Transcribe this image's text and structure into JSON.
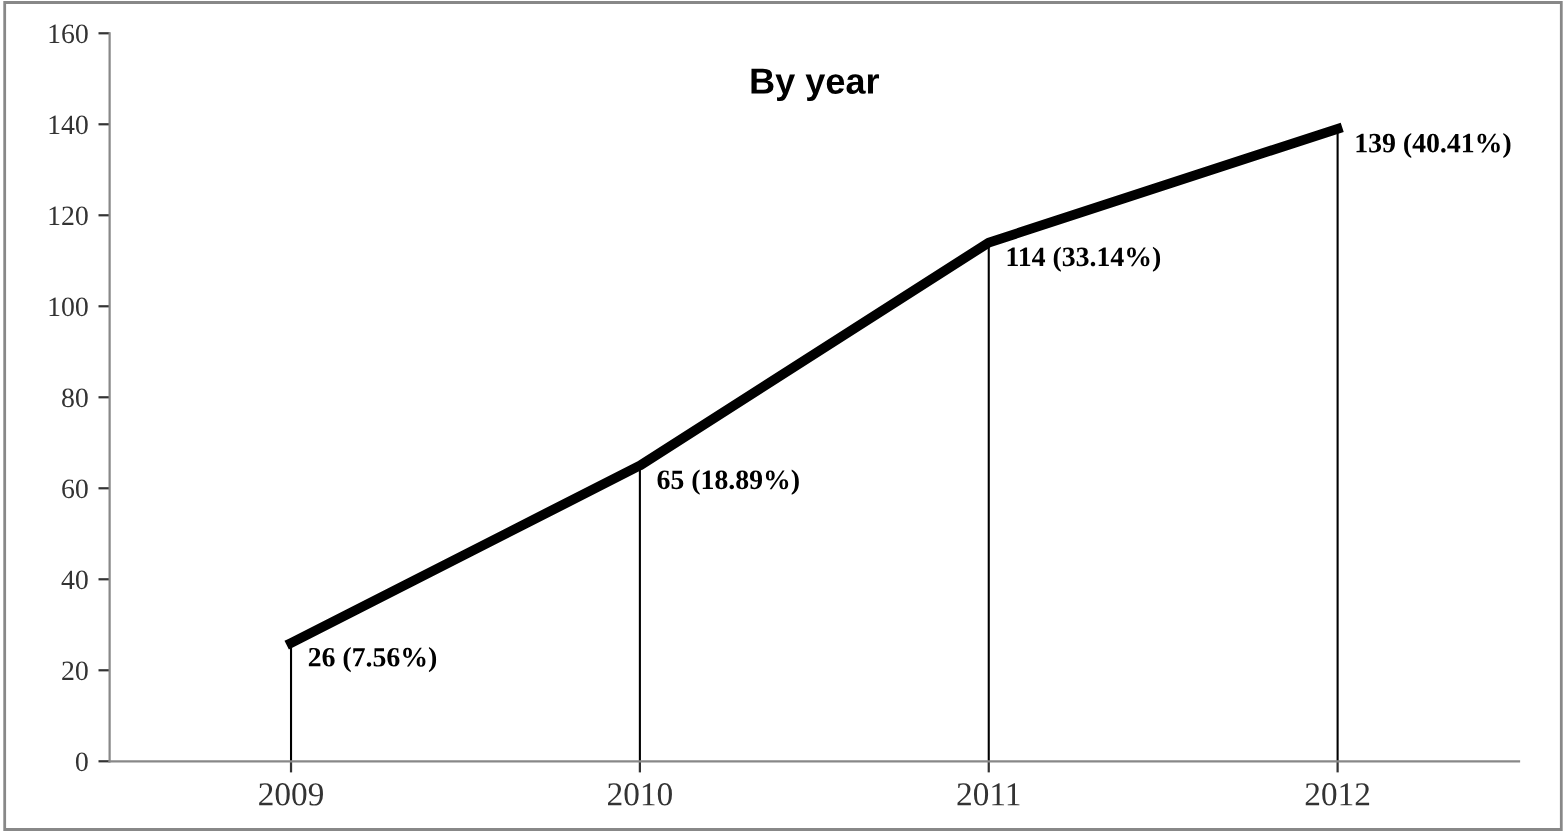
{
  "chart_data": {
    "type": "line",
    "title": "By year",
    "categories": [
      "2009",
      "2010",
      "2011",
      "2012"
    ],
    "series": [
      {
        "type": "bar",
        "color": "#000000",
        "values": [
          26,
          65,
          114,
          139
        ]
      },
      {
        "color": "#000000",
        "values": [
          26,
          65,
          114,
          139
        ],
        "value_labels": [
          "26 (7.56%)",
          "65 (18.89%)",
          "114 (33.14%)",
          "139 (40.41%)"
        ]
      }
    ],
    "ylim": [
      0,
      160
    ],
    "yticks": [
      0,
      20,
      40,
      60,
      80,
      100,
      120,
      140,
      160
    ],
    "grid": false,
    "legend": false,
    "marker": "none",
    "line_style": "solid"
  }
}
